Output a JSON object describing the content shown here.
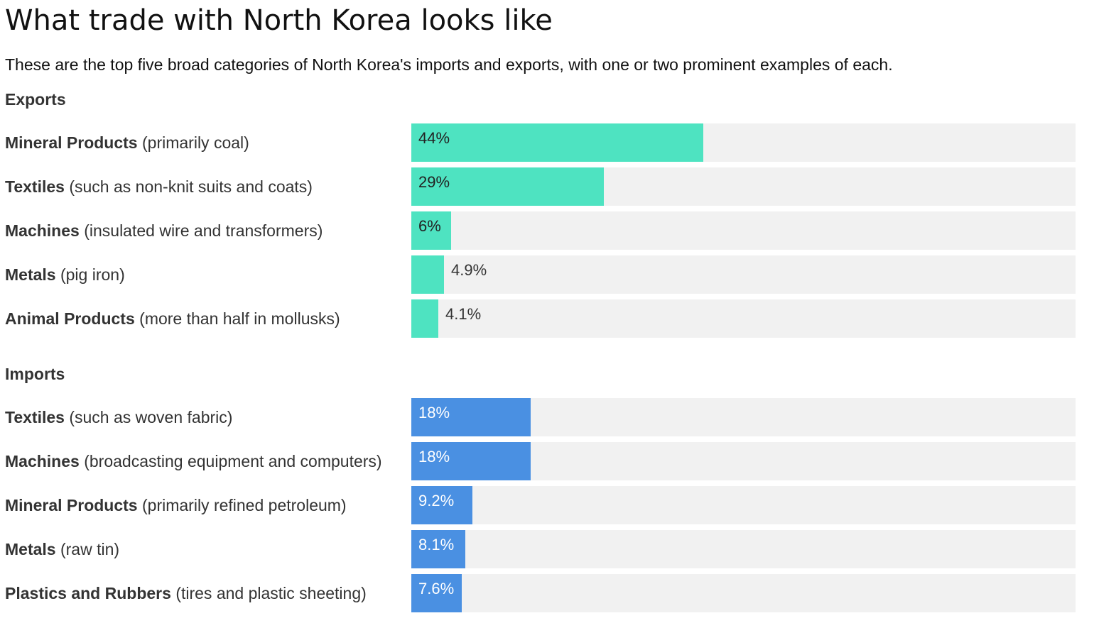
{
  "title": "What trade with North Korea looks like",
  "subtitle": "These are the top five broad categories of North Korea's imports and exports, with one or two prominent examples of each.",
  "colors": {
    "exports": "#4ee3c1",
    "imports": "#4a90e2",
    "track": "#f1f1f1"
  },
  "chart_data": [
    {
      "type": "bar",
      "orientation": "horizontal",
      "section": "Exports",
      "xlim": [
        0,
        100
      ],
      "categories": [
        {
          "name": "Mineral Products",
          "detail": "(primarily coal)",
          "value": 44,
          "label": "44%"
        },
        {
          "name": "Textiles",
          "detail": "(such as non-knit suits and coats)",
          "value": 29,
          "label": "29%"
        },
        {
          "name": "Machines",
          "detail": "(insulated wire and transformers)",
          "value": 6,
          "label": "6%"
        },
        {
          "name": "Metals",
          "detail": "(pig iron)",
          "value": 4.9,
          "label": "4.9%"
        },
        {
          "name": "Animal Products",
          "detail": "(more than half in mollusks)",
          "value": 4.1,
          "label": "4.1%"
        }
      ]
    },
    {
      "type": "bar",
      "orientation": "horizontal",
      "section": "Imports",
      "xlim": [
        0,
        100
      ],
      "categories": [
        {
          "name": "Textiles",
          "detail": "(such as woven fabric)",
          "value": 18,
          "label": "18%"
        },
        {
          "name": "Machines",
          "detail": "(broadcasting equipment and computers)",
          "value": 18,
          "label": "18%"
        },
        {
          "name": "Mineral Products",
          "detail": "(primarily refined petroleum)",
          "value": 9.2,
          "label": "9.2%"
        },
        {
          "name": "Metals",
          "detail": "(raw tin)",
          "value": 8.1,
          "label": "8.1%"
        },
        {
          "name": "Plastics and Rubbers",
          "detail": "(tires and plastic sheeting)",
          "value": 7.6,
          "label": "7.6%"
        }
      ]
    }
  ]
}
